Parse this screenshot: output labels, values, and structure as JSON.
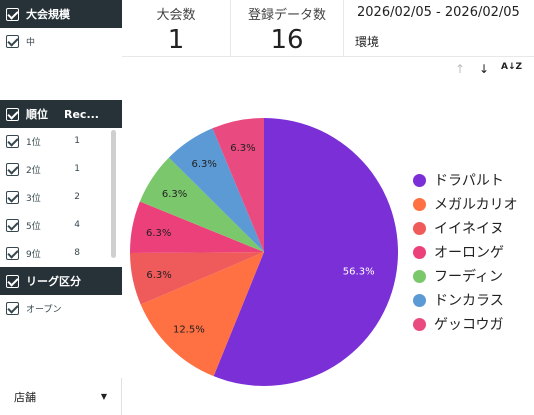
{
  "filters": {
    "taikai": {
      "header": "大会規模",
      "item": "中"
    },
    "rank": {
      "header_label": "順位",
      "header_col": "Rec...",
      "rows": [
        {
          "label": "1位",
          "count": "1"
        },
        {
          "label": "2位",
          "count": "1"
        },
        {
          "label": "3位",
          "count": "2"
        },
        {
          "label": "5位",
          "count": "4"
        },
        {
          "label": "9位",
          "count": "8"
        }
      ]
    },
    "league": {
      "header": "リーグ区分",
      "item": "オープン"
    },
    "store": {
      "label": "店舗"
    }
  },
  "scorecards": [
    {
      "label": "大会数",
      "value": "1"
    },
    {
      "label": "登録データ数",
      "value": "16"
    }
  ],
  "date_range": "2026/02/05 - 2026/02/05",
  "environment_label": "環境",
  "chart_data": {
    "type": "pie",
    "labels": [
      "ドラパルト",
      "メガルカリオ",
      "イイネイヌ",
      "オーロンゲ",
      "フーディン",
      "ドンカラス",
      "ゲッコウガ"
    ],
    "values": [
      56.3,
      12.5,
      6.3,
      6.3,
      6.3,
      6.3,
      6.3
    ],
    "value_labels": [
      "56.3%",
      "12.5%",
      "6.3%",
      "6.3%",
      "6.3%",
      "6.3%",
      "6.3%"
    ],
    "colors": [
      "#7b2fd6",
      "#ff7043",
      "#ef5a5a",
      "#ec407a",
      "#7bc86c",
      "#5c9ad6",
      "#e94a7f"
    ],
    "legend_position": "right"
  }
}
